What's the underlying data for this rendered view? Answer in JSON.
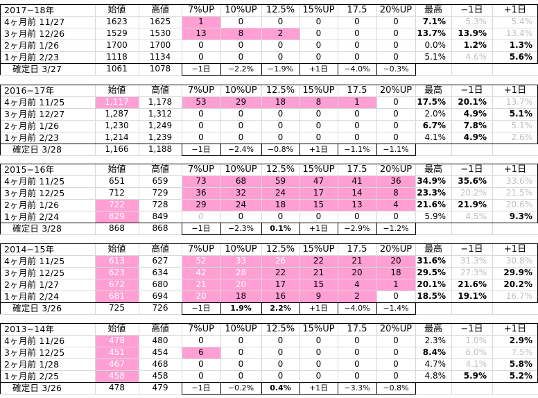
{
  "headers": [
    "始値",
    "高値",
    "7%UP",
    "10%UP",
    "12.5%",
    "15%UP",
    "17.5",
    "20%UP",
    "最高",
    "−1日",
    "+1日"
  ],
  "blocks": [
    {
      "title": "2017−18年",
      "rows": [
        {
          "label": "4ヶ月前 11/27",
          "open": "1623",
          "high": "1625",
          "open_pink": false,
          "t": [
            "1",
            "0",
            "0",
            "0",
            "0",
            "0"
          ],
          "pink": [
            1,
            0,
            0,
            0,
            0,
            0
          ],
          "max": {
            "v": "7.1%",
            "s": "b"
          },
          "m1": {
            "v": "5.3%",
            "s": "g"
          },
          "p1": {
            "v": "5.4%",
            "s": "g"
          }
        },
        {
          "label": "3ヶ月前 12/26",
          "open": "1529",
          "high": "1530",
          "open_pink": false,
          "t": [
            "13",
            "8",
            "2",
            "0",
            "0",
            "0"
          ],
          "pink": [
            1,
            1,
            1,
            0,
            0,
            0
          ],
          "max": {
            "v": "13.7%",
            "s": "b"
          },
          "m1": {
            "v": "13.9%",
            "s": "b"
          },
          "p1": {
            "v": "13.4%",
            "s": "g"
          }
        },
        {
          "label": "2ヶ月前 1/26",
          "open": "1700",
          "high": "1700",
          "open_pink": false,
          "t": [
            "0",
            "0",
            "0",
            "0",
            "0",
            "0"
          ],
          "pink": [
            0,
            0,
            0,
            0,
            0,
            0
          ],
          "max": {
            "v": "0.0%",
            "s": "n"
          },
          "m1": {
            "v": "1.2%",
            "s": "b"
          },
          "p1": {
            "v": "1.3%",
            "s": "b"
          }
        },
        {
          "label": "1ヶ月前 2/23",
          "open": "1118",
          "high": "1134",
          "open_pink": false,
          "t": [
            "0",
            "0",
            "0",
            "0",
            "0",
            "0"
          ],
          "pink": [
            0,
            0,
            0,
            0,
            0,
            0
          ],
          "max": {
            "v": "5.1%",
            "s": "n"
          },
          "m1": {
            "v": "4.6%",
            "s": "g"
          },
          "p1": {
            "v": "5.6%",
            "s": "b"
          }
        },
        {
          "label": "確定日 3/27",
          "open": "1061",
          "high": "1078",
          "open_pink": false,
          "t": [
            "−1日",
            "−2.2%",
            "−1.9%",
            "+1日",
            "−4.0%",
            "−0.3%"
          ],
          "pink": [
            0,
            0,
            0,
            0,
            0,
            0
          ],
          "bold_t": [
            0,
            0,
            0,
            0,
            0,
            0
          ],
          "max": {
            "v": "",
            "s": "n"
          },
          "m1": {
            "v": "",
            "s": "n"
          },
          "p1": {
            "v": "",
            "s": "n"
          }
        }
      ]
    },
    {
      "title": "2016−17年",
      "rows": [
        {
          "label": "4ヶ月前 11/25",
          "open": "1,117",
          "high": "1,178",
          "open_pink": true,
          "t": [
            "53",
            "29",
            "18",
            "8",
            "1",
            "0"
          ],
          "pink": [
            1,
            1,
            1,
            1,
            1,
            0
          ],
          "max": {
            "v": "17.5%",
            "s": "b"
          },
          "m1": {
            "v": "20.1%",
            "s": "b"
          },
          "p1": {
            "v": "13.7%",
            "s": "g"
          }
        },
        {
          "label": "3ヶ月前 12/27",
          "open": "1,287",
          "high": "1,312",
          "open_pink": false,
          "t": [
            "0",
            "0",
            "0",
            "0",
            "0",
            "0"
          ],
          "pink": [
            0,
            0,
            0,
            0,
            0,
            0
          ],
          "max": {
            "v": "2.0%",
            "s": "n"
          },
          "m1": {
            "v": "4.9%",
            "s": "b"
          },
          "p1": {
            "v": "5.1%",
            "s": "b"
          }
        },
        {
          "label": "2ヶ月前 1/26",
          "open": "1,230",
          "high": "1,249",
          "open_pink": false,
          "t": [
            "0",
            "0",
            "0",
            "0",
            "0",
            "0"
          ],
          "pink": [
            0,
            0,
            0,
            0,
            0,
            0
          ],
          "max": {
            "v": "6.7%",
            "s": "b"
          },
          "m1": {
            "v": "7.8%",
            "s": "b"
          },
          "p1": {
            "v": "5.1%",
            "s": "g"
          }
        },
        {
          "label": "1ヶ月前 2/23",
          "open": "1,214",
          "high": "1,239",
          "open_pink": false,
          "t": [
            "0",
            "0",
            "0",
            "0",
            "0",
            "0"
          ],
          "pink": [
            0,
            0,
            0,
            0,
            0,
            0
          ],
          "max": {
            "v": "4.1%",
            "s": "n"
          },
          "m1": {
            "v": "4.9%",
            "s": "b"
          },
          "p1": {
            "v": "2.6%",
            "s": "g"
          }
        },
        {
          "label": "確定日 3/28",
          "open": "1,166",
          "high": "1,188",
          "open_pink": false,
          "t": [
            "−1日",
            "−2.4%",
            "−0.8%",
            "+1日",
            "−1.1%",
            "−1.1%"
          ],
          "pink": [
            0,
            0,
            0,
            0,
            0,
            0
          ],
          "bold_t": [
            0,
            0,
            0,
            0,
            0,
            0
          ],
          "max": {
            "v": "",
            "s": "n"
          },
          "m1": {
            "v": "",
            "s": "n"
          },
          "p1": {
            "v": "",
            "s": "n"
          }
        }
      ]
    },
    {
      "title": "2015−16年",
      "rows": [
        {
          "label": "4ヶ月前 11/25",
          "open": "651",
          "high": "659",
          "open_pink": false,
          "t": [
            "73",
            "68",
            "59",
            "47",
            "41",
            "36"
          ],
          "pink": [
            1,
            1,
            1,
            1,
            1,
            1
          ],
          "max": {
            "v": "34.9%",
            "s": "b"
          },
          "m1": {
            "v": "35.6%",
            "s": "b"
          },
          "p1": {
            "v": "33.6%",
            "s": "g"
          }
        },
        {
          "label": "3ヶ月前 12/25",
          "open": "712",
          "high": "729",
          "open_pink": false,
          "t": [
            "36",
            "32",
            "24",
            "17",
            "14",
            "8"
          ],
          "pink": [
            1,
            1,
            1,
            1,
            1,
            1
          ],
          "max": {
            "v": "23.3%",
            "s": "b"
          },
          "m1": {
            "v": "20.2%",
            "s": "g"
          },
          "p1": {
            "v": "21.5%",
            "s": "g"
          }
        },
        {
          "label": "2ヶ月前 1/26",
          "open": "722",
          "high": "728",
          "open_pink": true,
          "t": [
            "29",
            "24",
            "18",
            "15",
            "13",
            "4"
          ],
          "pink": [
            1,
            1,
            1,
            1,
            1,
            1
          ],
          "max": {
            "v": "21.6%",
            "s": "b"
          },
          "m1": {
            "v": "21.9%",
            "s": "b"
          },
          "p1": {
            "v": "20.6%",
            "s": "g"
          }
        },
        {
          "label": "1ヶ月前 2/24",
          "open": "829",
          "high": "849",
          "open_pink": true,
          "t": [
            "0",
            "0",
            "0",
            "0",
            "0",
            "0"
          ],
          "pink": [
            0,
            0,
            0,
            0,
            0,
            0
          ],
          "gray_t": [
            1,
            0,
            0,
            0,
            0,
            0
          ],
          "max": {
            "v": "5.9%",
            "s": "n"
          },
          "m1": {
            "v": "4.5%",
            "s": "g"
          },
          "p1": {
            "v": "9.3%",
            "s": "b"
          }
        },
        {
          "label": "確定日 3/28",
          "open": "868",
          "high": "868",
          "open_pink": false,
          "t": [
            "−1日",
            "−2.3%",
            "0.1%",
            "+1日",
            "−2.9%",
            "−1.2%"
          ],
          "pink": [
            0,
            0,
            0,
            0,
            0,
            0
          ],
          "bold_t": [
            0,
            0,
            1,
            0,
            0,
            0
          ],
          "max": {
            "v": "",
            "s": "n"
          },
          "m1": {
            "v": "",
            "s": "n"
          },
          "p1": {
            "v": "",
            "s": "n"
          }
        }
      ]
    },
    {
      "title": "2014−15年",
      "rows": [
        {
          "label": "4ヶ月前 11/25",
          "open": "613",
          "high": "627",
          "open_pink": true,
          "t": [
            "52",
            "33",
            "26",
            "22",
            "21",
            "20"
          ],
          "pink": [
            1,
            1,
            1,
            1,
            1,
            1
          ],
          "gray_t": [
            1,
            1,
            1,
            0,
            0,
            0
          ],
          "max": {
            "v": "31.6%",
            "s": "b"
          },
          "m1": {
            "v": "31.3%",
            "s": "g"
          },
          "p1": {
            "v": "30.8%",
            "s": "g"
          }
        },
        {
          "label": "3ヶ月前 12/25",
          "open": "623",
          "high": "634",
          "open_pink": true,
          "t": [
            "42",
            "28",
            "22",
            "21",
            "20",
            "18"
          ],
          "pink": [
            1,
            1,
            1,
            1,
            1,
            1
          ],
          "gray_t": [
            1,
            1,
            0,
            0,
            0,
            0
          ],
          "max": {
            "v": "29.5%",
            "s": "b"
          },
          "m1": {
            "v": "27.3%",
            "s": "g"
          },
          "p1": {
            "v": "29.9%",
            "s": "b"
          }
        },
        {
          "label": "2ヶ月前 1/27",
          "open": "672",
          "high": "680",
          "open_pink": true,
          "t": [
            "21",
            "20",
            "17",
            "15",
            "4",
            "1"
          ],
          "pink": [
            1,
            1,
            1,
            1,
            1,
            1
          ],
          "gray_t": [
            1,
            1,
            0,
            0,
            0,
            0
          ],
          "max": {
            "v": "20.1%",
            "s": "b"
          },
          "m1": {
            "v": "21.6%",
            "s": "b"
          },
          "p1": {
            "v": "20.2%",
            "s": "b"
          }
        },
        {
          "label": "1ヶ月前 2/24",
          "open": "681",
          "high": "694",
          "open_pink": true,
          "t": [
            "20",
            "18",
            "16",
            "9",
            "2",
            "0"
          ],
          "pink": [
            1,
            1,
            1,
            1,
            1,
            0
          ],
          "gray_t": [
            1,
            0,
            0,
            0,
            0,
            0
          ],
          "max": {
            "v": "18.5%",
            "s": "b"
          },
          "m1": {
            "v": "19.1%",
            "s": "b"
          },
          "p1": {
            "v": "16.7%",
            "s": "g"
          }
        },
        {
          "label": "確定日 3/26",
          "open": "725",
          "high": "726",
          "open_pink": false,
          "t": [
            "−1日",
            "1.9%",
            "2.2%",
            "+1日",
            "−4.0%",
            "−1.4%"
          ],
          "pink": [
            0,
            0,
            0,
            0,
            0,
            0
          ],
          "bold_t": [
            0,
            1,
            1,
            0,
            0,
            0
          ],
          "max": {
            "v": "",
            "s": "n"
          },
          "m1": {
            "v": "",
            "s": "n"
          },
          "p1": {
            "v": "",
            "s": "n"
          }
        }
      ]
    },
    {
      "title": "2013−14年",
      "rows": [
        {
          "label": "4ヶ月前 11/26",
          "open": "478",
          "high": "480",
          "open_pink": true,
          "t": [
            "0",
            "0",
            "0",
            "0",
            "0",
            "0"
          ],
          "pink": [
            0,
            0,
            0,
            0,
            0,
            0
          ],
          "max": {
            "v": "2.3%",
            "s": "n"
          },
          "m1": {
            "v": "1.0%",
            "s": "g"
          },
          "p1": {
            "v": "2.9%",
            "s": "b"
          }
        },
        {
          "label": "3ヶ月前 12/25",
          "open": "451",
          "high": "454",
          "open_pink": true,
          "t": [
            "6",
            "0",
            "0",
            "0",
            "0",
            "0"
          ],
          "pink": [
            1,
            0,
            0,
            0,
            0,
            0
          ],
          "max": {
            "v": "8.4%",
            "s": "b"
          },
          "m1": {
            "v": "6.0%",
            "s": "g"
          },
          "p1": {
            "v": "7.5%",
            "s": "g"
          }
        },
        {
          "label": "2ヶ月前 1/28",
          "open": "467",
          "high": "468",
          "open_pink": true,
          "t": [
            "0",
            "0",
            "0",
            "0",
            "0",
            "0"
          ],
          "pink": [
            0,
            0,
            0,
            0,
            0,
            0
          ],
          "max": {
            "v": "4.7%",
            "s": "n"
          },
          "m1": {
            "v": "4.1%",
            "s": "g"
          },
          "p1": {
            "v": "5.8%",
            "s": "b"
          }
        },
        {
          "label": "1ヶ月前 2/25",
          "open": "458",
          "high": "458",
          "open_pink": true,
          "t": [
            "0",
            "0",
            "0",
            "0",
            "0",
            "0"
          ],
          "pink": [
            0,
            0,
            0,
            0,
            0,
            0
          ],
          "max": {
            "v": "4.8%",
            "s": "n"
          },
          "m1": {
            "v": "5.9%",
            "s": "b"
          },
          "p1": {
            "v": "5.2%",
            "s": "b"
          }
        },
        {
          "label": "確定日 3/26",
          "open": "478",
          "high": "479",
          "open_pink": false,
          "t": [
            "−1日",
            "−0.2%",
            "0.4%",
            "+1日",
            "−3.3%",
            "−0.8%"
          ],
          "pink": [
            0,
            0,
            0,
            0,
            0,
            0
          ],
          "bold_t": [
            0,
            0,
            1,
            0,
            0,
            0
          ],
          "max": {
            "v": "",
            "s": "n"
          },
          "m1": {
            "v": "",
            "s": "n"
          },
          "p1": {
            "v": "",
            "s": "n"
          }
        }
      ]
    }
  ],
  "colors": {
    "pink": "#ff9fd3",
    "gray_text": "#c0c0c0",
    "grid": "#d8d8d8"
  }
}
